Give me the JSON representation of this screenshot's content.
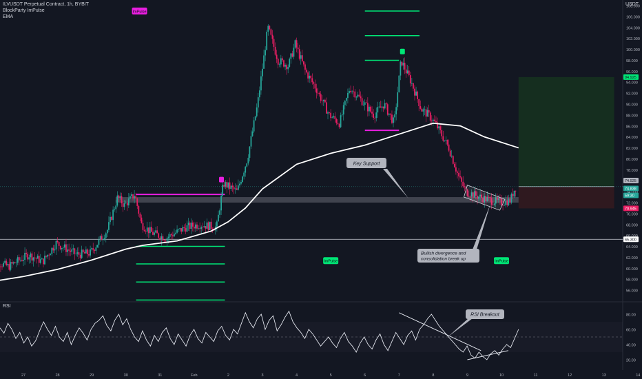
{
  "header": {
    "symbol_line": "ILVUSDT Perpetual Contract, 1h, BYBIT",
    "indicator_1": "BlockParty ImPulse",
    "indicator_2": "EMA",
    "currency": "USDT"
  },
  "rsi_pane": {
    "label": "RSI"
  },
  "colors": {
    "background": "#131722",
    "bull": "#26a69a",
    "bear": "#e91e63",
    "ema": "#ffffff",
    "impulse_green": "#00e676",
    "impulse_magenta": "#e91ee0",
    "profit_zone": "#16331f",
    "loss_zone": "#331a1f",
    "last_price": "#26a69a",
    "stop_price": "#e91e63",
    "target_price": "#00e676"
  },
  "chart_data": [
    {
      "type": "candlestick",
      "title": "ILVUSDT Perpetual Contract, 1h, BYBIT",
      "x_ticks": [
        "27",
        "28",
        "29",
        "30",
        "31",
        "Feb",
        "2",
        "3",
        "4",
        "5",
        "6",
        "7",
        "8",
        "9",
        "10",
        "11",
        "12",
        "13",
        "14"
      ],
      "y_ticks": [
        "56.000",
        "58.000",
        "60.000",
        "62.000",
        "64.000",
        "66.000",
        "68.000",
        "70.000",
        "72.000",
        "74.000",
        "76.000",
        "78.000",
        "80.000",
        "82.000",
        "84.000",
        "86.000",
        "88.000",
        "90.000",
        "92.000",
        "94.000",
        "96.000",
        "98.000",
        "100.000",
        "102.000",
        "104.000",
        "106.000",
        "108.000"
      ],
      "ylim": [
        54,
        110
      ],
      "price_path": [
        {
          "day": 26.0,
          "price": 62.0
        },
        {
          "day": 26.6,
          "price": 60.3
        },
        {
          "day": 27.2,
          "price": 62.5
        },
        {
          "day": 27.6,
          "price": 61.2
        },
        {
          "day": 28.0,
          "price": 64.6
        },
        {
          "day": 28.6,
          "price": 62.5
        },
        {
          "day": 29.0,
          "price": 62.8
        },
        {
          "day": 29.5,
          "price": 67.0
        },
        {
          "day": 29.8,
          "price": 73.0
        },
        {
          "day": 30.0,
          "price": 71.5
        },
        {
          "day": 30.3,
          "price": 73.5
        },
        {
          "day": 30.5,
          "price": 68.0
        },
        {
          "day": 30.8,
          "price": 66.5
        },
        {
          "day": 31.2,
          "price": 65.5
        },
        {
          "day": 31.8,
          "price": 67.5
        },
        {
          "day": 32.2,
          "price": 68.0
        },
        {
          "day": 32.7,
          "price": 67.5
        },
        {
          "day": 32.9,
          "price": 75.5
        },
        {
          "day": 33.3,
          "price": 74.0
        },
        {
          "day": 33.6,
          "price": 80.0
        },
        {
          "day": 33.9,
          "price": 90.0
        },
        {
          "day": 34.2,
          "price": 104.0
        },
        {
          "day": 34.5,
          "price": 98.0
        },
        {
          "day": 34.8,
          "price": 97.0
        },
        {
          "day": 35.0,
          "price": 101.0
        },
        {
          "day": 35.3,
          "price": 96.0
        },
        {
          "day": 35.6,
          "price": 93.0
        },
        {
          "day": 36.0,
          "price": 88.0
        },
        {
          "day": 36.3,
          "price": 86.5
        },
        {
          "day": 36.6,
          "price": 93.0
        },
        {
          "day": 36.9,
          "price": 91.0
        },
        {
          "day": 37.3,
          "price": 88.0
        },
        {
          "day": 37.6,
          "price": 90.0
        },
        {
          "day": 37.9,
          "price": 86.5
        },
        {
          "day": 38.1,
          "price": 98.0
        },
        {
          "day": 38.4,
          "price": 94.0
        },
        {
          "day": 38.7,
          "price": 89.0
        },
        {
          "day": 38.9,
          "price": 88.0
        },
        {
          "day": 39.1,
          "price": 86.5
        },
        {
          "day": 39.5,
          "price": 82.0
        },
        {
          "day": 39.8,
          "price": 76.5
        },
        {
          "day": 40.0,
          "price": 74.0
        },
        {
          "day": 40.5,
          "price": 72.8
        },
        {
          "day": 41.0,
          "price": 72.0
        },
        {
          "day": 41.3,
          "price": 72.4
        },
        {
          "day": 41.45,
          "price": 74.9
        }
      ],
      "series": [
        {
          "name": "EMA",
          "points": [
            {
              "day": 26.0,
              "price": 57.5
            },
            {
              "day": 27.0,
              "price": 58.5
            },
            {
              "day": 28.0,
              "price": 59.8
            },
            {
              "day": 29.0,
              "price": 61.5
            },
            {
              "day": 30.0,
              "price": 63.5
            },
            {
              "day": 30.5,
              "price": 64.2
            },
            {
              "day": 31.5,
              "price": 65.0
            },
            {
              "day": 32.5,
              "price": 66.8
            },
            {
              "day": 33.0,
              "price": 68.5
            },
            {
              "day": 33.5,
              "price": 71.0
            },
            {
              "day": 34.0,
              "price": 74.5
            },
            {
              "day": 35.0,
              "price": 79.0
            },
            {
              "day": 36.0,
              "price": 81.0
            },
            {
              "day": 37.0,
              "price": 82.5
            },
            {
              "day": 38.0,
              "price": 84.5
            },
            {
              "day": 39.0,
              "price": 86.5
            },
            {
              "day": 39.8,
              "price": 86.0
            },
            {
              "day": 40.5,
              "price": 84.0
            },
            {
              "day": 41.5,
              "price": 82.0
            }
          ]
        }
      ],
      "support_zone": {
        "label": "Key Support",
        "from": 72.0,
        "to": 73.0,
        "start_day": 29.7,
        "end_day": 41.5
      },
      "impulse_markers": [
        {
          "label": "ImPulse",
          "day": 30.4,
          "price": 107.0,
          "color": "magenta"
        },
        {
          "label": "ImPulse",
          "day": 36.0,
          "price": 61.4,
          "color": "green"
        },
        {
          "label": "ImPulse",
          "day": 41.0,
          "price": 61.4,
          "color": "green"
        }
      ],
      "impulse_levels": [
        {
          "start_day": 37.0,
          "end_day": 38.6,
          "price": 107.0,
          "color": "green"
        },
        {
          "start_day": 37.0,
          "end_day": 38.6,
          "price": 102.5,
          "color": "green"
        },
        {
          "start_day": 37.0,
          "end_day": 38.0,
          "price": 98.0,
          "color": "green"
        },
        {
          "start_day": 37.0,
          "end_day": 38.0,
          "price": 85.2,
          "color": "magenta"
        },
        {
          "start_day": 30.3,
          "end_day": 32.9,
          "price": 73.5,
          "color": "magenta"
        },
        {
          "start_day": 30.3,
          "end_day": 32.9,
          "price": 64.0,
          "color": "green"
        },
        {
          "start_day": 30.3,
          "end_day": 32.9,
          "price": 60.8,
          "color": "green"
        },
        {
          "start_day": 30.3,
          "end_day": 32.9,
          "price": 57.5,
          "color": "green"
        },
        {
          "start_day": 30.3,
          "end_day": 32.9,
          "price": 54.2,
          "color": "green"
        }
      ],
      "markers_small": [
        {
          "day": 32.8,
          "price": 76.2,
          "color": "magenta"
        },
        {
          "day": 38.1,
          "price": 99.6,
          "color": "green"
        }
      ],
      "position": {
        "entry": 74.925,
        "target": 94.925,
        "stop": 70.945,
        "start_day": 41.5,
        "end_day": 44.3
      },
      "horizontal_line": {
        "price": 65.3
      },
      "annotations": [
        {
          "text": "Key Support"
        },
        {
          "text": "Bullish divergence and consolidation break up"
        }
      ],
      "price_labels": [
        "74.925",
        "74.838",
        "59:30",
        "70.945",
        "94.925",
        "65.300"
      ]
    },
    {
      "type": "line",
      "title": "RSI",
      "y_ticks": [
        "20.00",
        "40.00",
        "60.00",
        "80.00"
      ],
      "ylim": [
        10,
        90
      ],
      "values": [
        62,
        55,
        68,
        60,
        48,
        56,
        42,
        50,
        38,
        45,
        58,
        70,
        60,
        52,
        64,
        50,
        44,
        56,
        40,
        52,
        62,
        55,
        46,
        60,
        68,
        72,
        78,
        65,
        58,
        72,
        80,
        66,
        74,
        60,
        50,
        44,
        58,
        46,
        38,
        52,
        44,
        56,
        62,
        48,
        40,
        54,
        46,
        38,
        52,
        60,
        48,
        42,
        56,
        50,
        44,
        58,
        64,
        52,
        46,
        60,
        54,
        68,
        82,
        70,
        62,
        74,
        80,
        60,
        72,
        78,
        58,
        66,
        76,
        84,
        70,
        62,
        56,
        48,
        60,
        54,
        46,
        38,
        44,
        50,
        42,
        36,
        48,
        56,
        44,
        38,
        30,
        42,
        50,
        40,
        34,
        46,
        54,
        40,
        32,
        44,
        56,
        48,
        40,
        52,
        58,
        46,
        60,
        66,
        74,
        80,
        72,
        64,
        58,
        52,
        46,
        40,
        34,
        30,
        38,
        26,
        22,
        30,
        24,
        20,
        28,
        32,
        26,
        34,
        40,
        36,
        48,
        60
      ],
      "annotations": [
        {
          "text": "RSI Breakout"
        }
      ]
    }
  ]
}
